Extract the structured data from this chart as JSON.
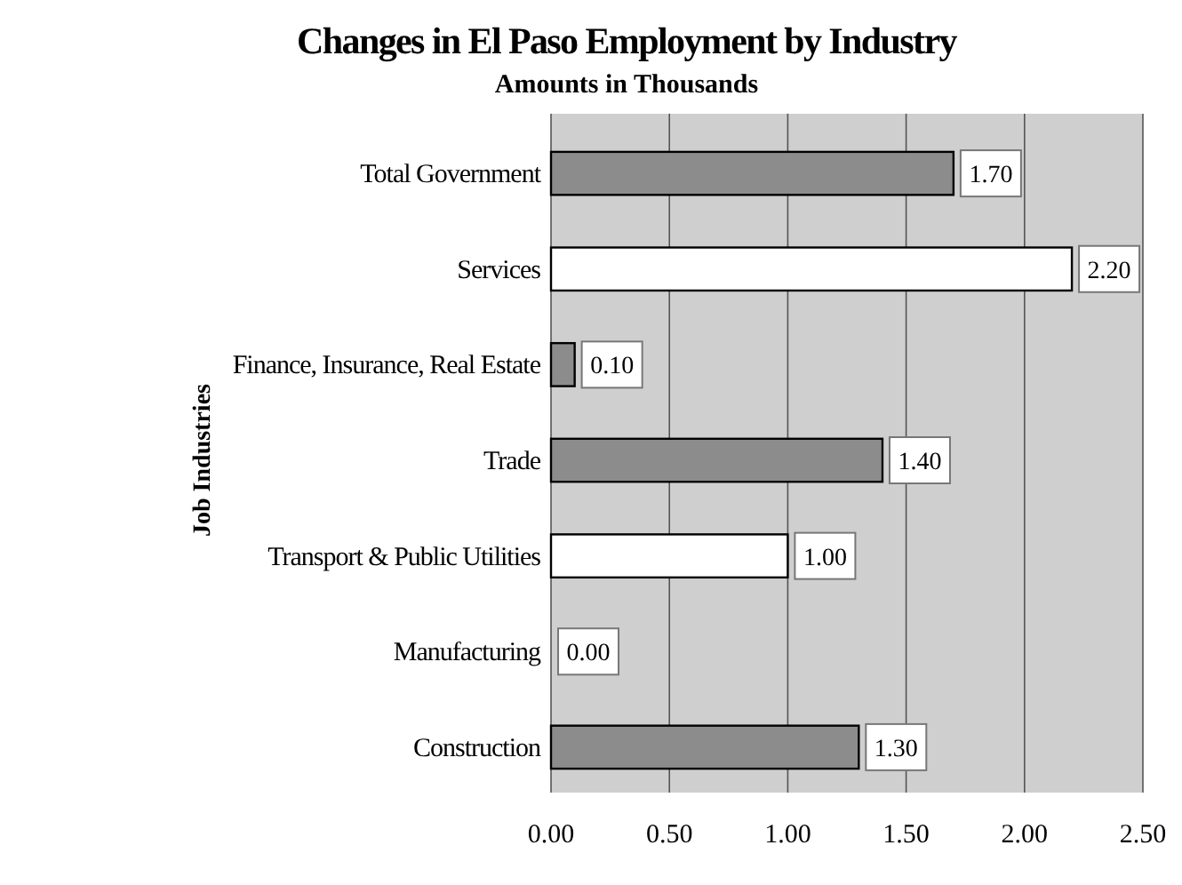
{
  "chart_data": {
    "type": "bar",
    "orientation": "horizontal",
    "title": "Changes in El Paso Employment by Industry",
    "subtitle": "Amounts in Thousands",
    "ylabel": "Job Industries",
    "categories": [
      "Total Government",
      "Services",
      "Finance, Insurance, Real Estate",
      "Trade",
      "Transport & Public Utilities",
      "Manufacturing",
      "Construction"
    ],
    "values": [
      1.7,
      2.2,
      0.1,
      1.4,
      1.0,
      0.0,
      1.3
    ],
    "colors": [
      "#8c8c8c",
      "#ffffff",
      "#8c8c8c",
      "#8c8c8c",
      "#ffffff",
      "#8c8c8c",
      "#8c8c8c"
    ],
    "value_labels": [
      "1.70",
      "2.20",
      "0.10",
      "1.40",
      "1.00",
      "0.00",
      "1.30"
    ],
    "xlim": [
      0,
      2.5
    ],
    "xticks": [
      {
        "value": 0,
        "label": "0.00"
      },
      {
        "value": 0.5,
        "label": "0.50"
      },
      {
        "value": 1,
        "label": "1.00"
      },
      {
        "value": 1.5,
        "label": "1.50"
      },
      {
        "value": 2,
        "label": "2.00"
      },
      {
        "value": 2.5,
        "label": "2.50"
      }
    ],
    "grid": "x"
  }
}
